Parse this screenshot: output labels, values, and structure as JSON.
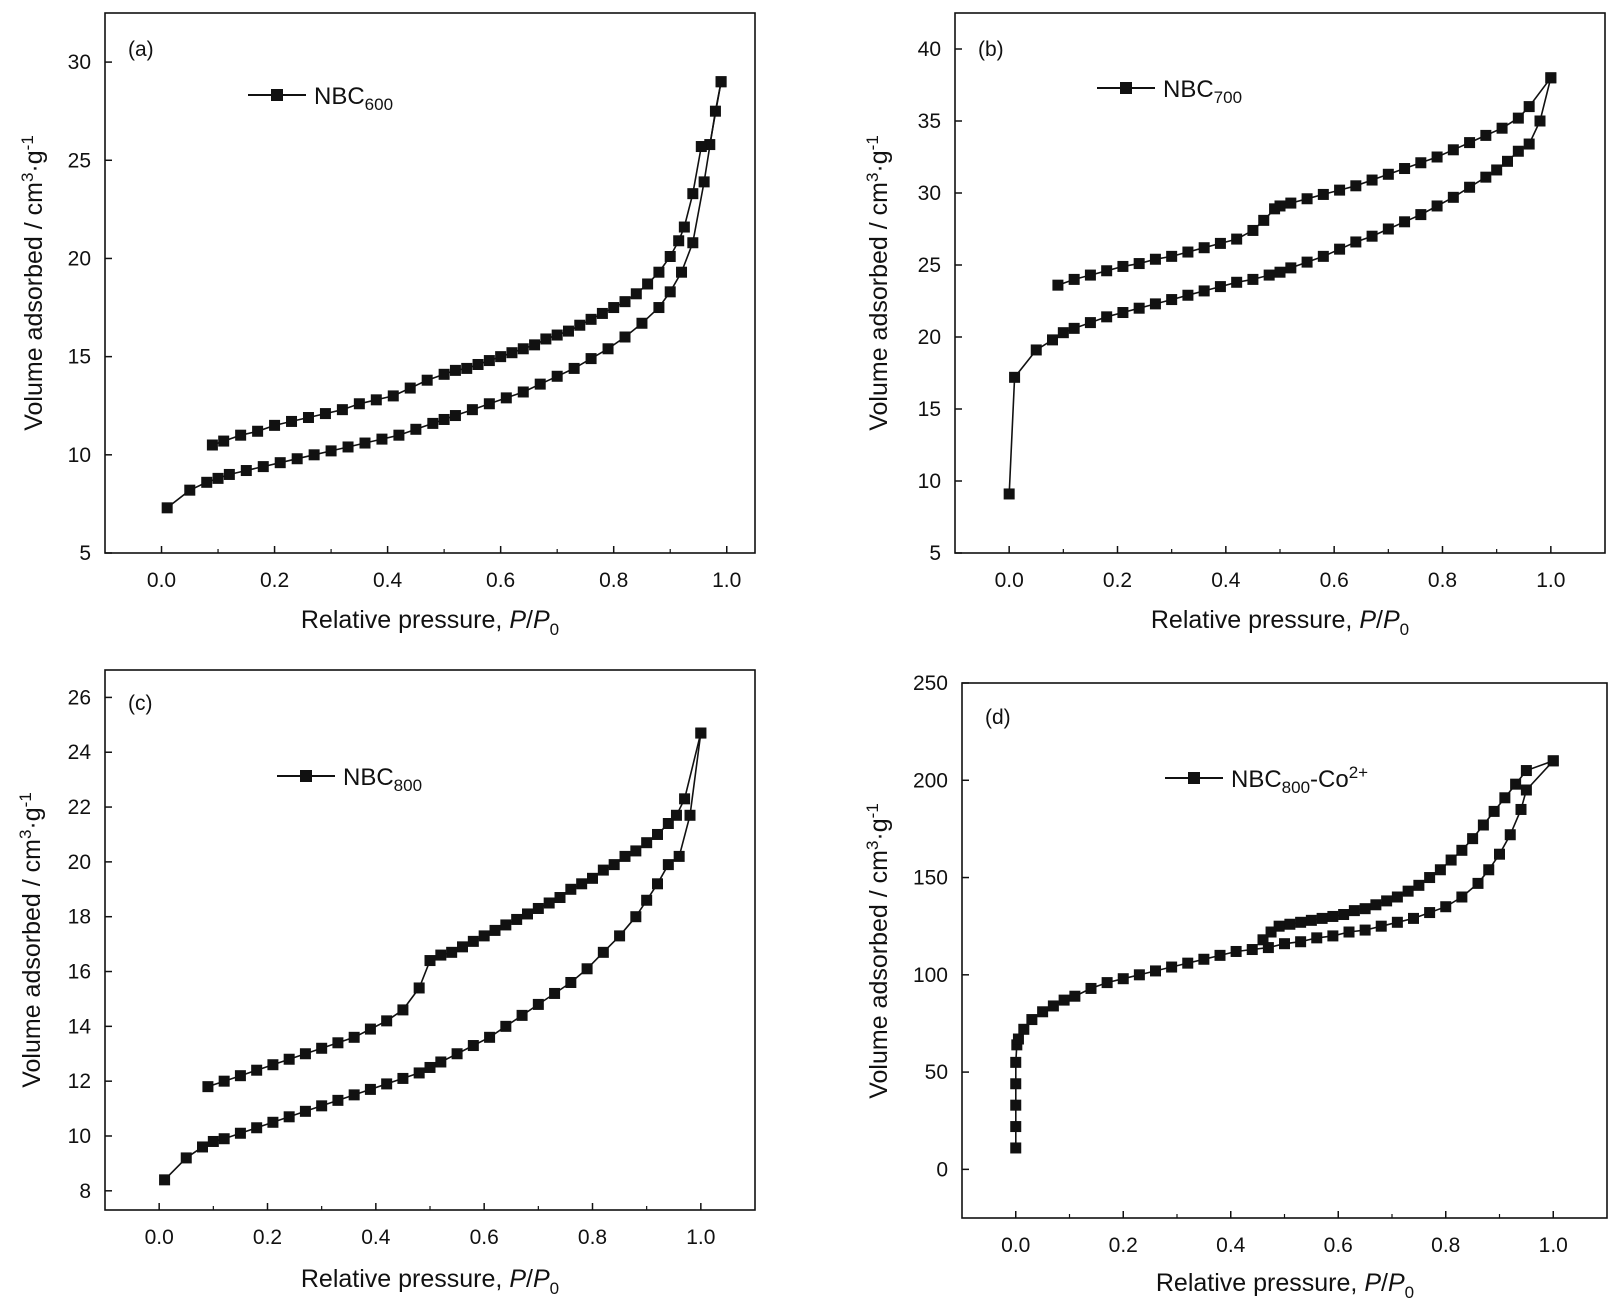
{
  "charts": [
    {
      "panel_label": "(a)",
      "legend": {
        "name": "NBC",
        "sub": "600",
        "sup": ""
      },
      "xlabel": {
        "prefix": "Relative pressure, ",
        "P": "P",
        "slash": "/",
        "P0": "P",
        "sub0": "0"
      },
      "ylabel": {
        "pre": "Volume adsorbed / cm",
        "sup3": "3",
        "mid": "·g",
        "supm1": "-1"
      },
      "xticks": [
        "0.0",
        "0.2",
        "0.4",
        "0.6",
        "0.8",
        "1.0"
      ],
      "yticks": [
        "5",
        "10",
        "15",
        "20",
        "25",
        "30"
      ]
    },
    {
      "panel_label": "(b)",
      "legend": {
        "name": "NBC",
        "sub": "700",
        "sup": ""
      },
      "xlabel": {
        "prefix": "Relative pressure, ",
        "P": "P",
        "slash": "/",
        "P0": "P",
        "sub0": "0"
      },
      "ylabel": {
        "pre": "Volume adsorbed / cm",
        "sup3": "3",
        "mid": "·g",
        "supm1": "-1"
      },
      "xticks": [
        "0.0",
        "0.2",
        "0.4",
        "0.6",
        "0.8",
        "1.0"
      ],
      "yticks": [
        "5",
        "10",
        "15",
        "20",
        "25",
        "30",
        "35",
        "40"
      ]
    },
    {
      "panel_label": "(c)",
      "legend": {
        "name": "NBC",
        "sub": "800",
        "sup": ""
      },
      "xlabel": {
        "prefix": "Relative pressure, ",
        "P": "P",
        "slash": "/",
        "P0": "P",
        "sub0": "0"
      },
      "ylabel": {
        "pre": "Volume adsorbed / cm",
        "sup3": "3",
        "mid": "·g",
        "supm1": "-1"
      },
      "xticks": [
        "0.0",
        "0.2",
        "0.4",
        "0.6",
        "0.8",
        "1.0"
      ],
      "yticks": [
        "8",
        "10",
        "12",
        "14",
        "16",
        "18",
        "20",
        "22",
        "24",
        "26"
      ]
    },
    {
      "panel_label": "(d)",
      "legend": {
        "name": "NBC",
        "sub": "800",
        "sup": "-Co",
        "sup2": "2+"
      },
      "xlabel": {
        "prefix": "Relative pressure, ",
        "P": "P",
        "slash": "/",
        "P0": "P",
        "sub0": "0"
      },
      "ylabel": {
        "pre": "Volume adsorbed / cm",
        "sup3": "3",
        "mid": "·g",
        "supm1": "-1"
      },
      "xticks": [
        "0.0",
        "0.2",
        "0.4",
        "0.6",
        "0.8",
        "1.0"
      ],
      "yticks": [
        "0",
        "50",
        "100",
        "150",
        "200",
        "250"
      ]
    }
  ],
  "chart_data": [
    {
      "type": "line",
      "marker": "square",
      "xlim": [
        -0.1,
        1.05
      ],
      "ylim": [
        5,
        32.5
      ],
      "series": [
        {
          "name": "NBC600",
          "adsorption": {
            "x": [
              0.01,
              0.05,
              0.08,
              0.1,
              0.12,
              0.15,
              0.18,
              0.21,
              0.24,
              0.27,
              0.3,
              0.33,
              0.36,
              0.39,
              0.42,
              0.45,
              0.48,
              0.5,
              0.52,
              0.55,
              0.58,
              0.61,
              0.64,
              0.67,
              0.7,
              0.73,
              0.76,
              0.79,
              0.82,
              0.85,
              0.88,
              0.9,
              0.92,
              0.94,
              0.96,
              0.98,
              0.99
            ],
            "y": [
              7.3,
              8.2,
              8.6,
              8.8,
              9.0,
              9.2,
              9.4,
              9.6,
              9.8,
              10.0,
              10.2,
              10.4,
              10.6,
              10.8,
              11.0,
              11.3,
              11.6,
              11.8,
              12.0,
              12.3,
              12.6,
              12.9,
              13.2,
              13.6,
              14.0,
              14.4,
              14.9,
              15.4,
              16.0,
              16.7,
              17.5,
              18.3,
              19.3,
              20.8,
              23.9,
              27.5,
              29.0
            ]
          },
          "desorption": {
            "x": [
              0.99,
              0.97,
              0.955,
              0.94,
              0.925,
              0.915,
              0.9,
              0.88,
              0.86,
              0.84,
              0.82,
              0.8,
              0.78,
              0.76,
              0.74,
              0.72,
              0.7,
              0.68,
              0.66,
              0.64,
              0.62,
              0.6,
              0.58,
              0.56,
              0.54,
              0.52,
              0.5,
              0.47,
              0.44,
              0.41,
              0.38,
              0.35,
              0.32,
              0.29,
              0.26,
              0.23,
              0.2,
              0.17,
              0.14,
              0.11,
              0.09
            ],
            "y": [
              29.0,
              25.8,
              25.7,
              23.3,
              21.6,
              20.9,
              20.1,
              19.3,
              18.7,
              18.2,
              17.8,
              17.5,
              17.2,
              16.9,
              16.6,
              16.3,
              16.1,
              15.9,
              15.6,
              15.4,
              15.2,
              15.0,
              14.8,
              14.6,
              14.4,
              14.3,
              14.1,
              13.8,
              13.4,
              13.0,
              12.8,
              12.6,
              12.3,
              12.1,
              11.9,
              11.7,
              11.5,
              11.2,
              11.0,
              10.7,
              10.5
            ]
          }
        }
      ]
    },
    {
      "type": "line",
      "marker": "square",
      "xlim": [
        -0.1,
        1.1
      ],
      "ylim": [
        5,
        42.5
      ],
      "series": [
        {
          "name": "NBC700",
          "adsorption": {
            "x": [
              0.0,
              0.01,
              0.05,
              0.08,
              0.1,
              0.12,
              0.15,
              0.18,
              0.21,
              0.24,
              0.27,
              0.3,
              0.33,
              0.36,
              0.39,
              0.42,
              0.45,
              0.48,
              0.5,
              0.52,
              0.55,
              0.58,
              0.61,
              0.64,
              0.67,
              0.7,
              0.73,
              0.76,
              0.79,
              0.82,
              0.85,
              0.88,
              0.9,
              0.92,
              0.94,
              0.96,
              0.98,
              1.0
            ],
            "y": [
              9.1,
              17.2,
              19.1,
              19.8,
              20.3,
              20.6,
              21.0,
              21.4,
              21.7,
              22.0,
              22.3,
              22.6,
              22.9,
              23.2,
              23.5,
              23.8,
              24.0,
              24.3,
              24.5,
              24.8,
              25.2,
              25.6,
              26.1,
              26.6,
              27.0,
              27.5,
              28.0,
              28.5,
              29.1,
              29.7,
              30.4,
              31.1,
              31.6,
              32.2,
              32.9,
              33.4,
              35.0,
              38.0
            ]
          },
          "desorption": {
            "x": [
              1.0,
              0.96,
              0.94,
              0.91,
              0.88,
              0.85,
              0.82,
              0.79,
              0.76,
              0.73,
              0.7,
              0.67,
              0.64,
              0.61,
              0.58,
              0.55,
              0.52,
              0.5,
              0.49,
              0.47,
              0.45,
              0.42,
              0.39,
              0.36,
              0.33,
              0.3,
              0.27,
              0.24,
              0.21,
              0.18,
              0.15,
              0.12,
              0.09
            ],
            "y": [
              38.0,
              36.0,
              35.2,
              34.5,
              34.0,
              33.5,
              33.0,
              32.5,
              32.1,
              31.7,
              31.3,
              30.9,
              30.5,
              30.2,
              29.9,
              29.6,
              29.3,
              29.1,
              28.9,
              28.1,
              27.4,
              26.8,
              26.5,
              26.2,
              25.9,
              25.6,
              25.4,
              25.1,
              24.9,
              24.6,
              24.3,
              24.0,
              23.6
            ]
          }
        }
      ]
    },
    {
      "type": "line",
      "marker": "square",
      "xlim": [
        -0.1,
        1.1
      ],
      "ylim": [
        7.3,
        27.0
      ],
      "series": [
        {
          "name": "NBC800",
          "adsorption": {
            "x": [
              0.01,
              0.05,
              0.08,
              0.1,
              0.12,
              0.15,
              0.18,
              0.21,
              0.24,
              0.27,
              0.3,
              0.33,
              0.36,
              0.39,
              0.42,
              0.45,
              0.48,
              0.5,
              0.52,
              0.55,
              0.58,
              0.61,
              0.64,
              0.67,
              0.7,
              0.73,
              0.76,
              0.79,
              0.82,
              0.85,
              0.88,
              0.9,
              0.92,
              0.94,
              0.96,
              0.98,
              1.0
            ],
            "y": [
              8.4,
              9.2,
              9.6,
              9.8,
              9.9,
              10.1,
              10.3,
              10.5,
              10.7,
              10.9,
              11.1,
              11.3,
              11.5,
              11.7,
              11.9,
              12.1,
              12.3,
              12.5,
              12.7,
              13.0,
              13.3,
              13.6,
              14.0,
              14.4,
              14.8,
              15.2,
              15.6,
              16.1,
              16.7,
              17.3,
              18.0,
              18.6,
              19.2,
              19.9,
              20.2,
              21.7,
              24.7
            ]
          },
          "desorption": {
            "x": [
              1.0,
              0.97,
              0.955,
              0.94,
              0.92,
              0.9,
              0.88,
              0.86,
              0.84,
              0.82,
              0.8,
              0.78,
              0.76,
              0.74,
              0.72,
              0.7,
              0.68,
              0.66,
              0.64,
              0.62,
              0.6,
              0.58,
              0.56,
              0.54,
              0.52,
              0.5,
              0.48,
              0.45,
              0.42,
              0.39,
              0.36,
              0.33,
              0.3,
              0.27,
              0.24,
              0.21,
              0.18,
              0.15,
              0.12,
              0.09
            ],
            "y": [
              24.7,
              22.3,
              21.7,
              21.4,
              21.0,
              20.7,
              20.4,
              20.2,
              19.9,
              19.7,
              19.4,
              19.2,
              19.0,
              18.7,
              18.5,
              18.3,
              18.1,
              17.9,
              17.7,
              17.5,
              17.3,
              17.1,
              16.9,
              16.7,
              16.6,
              16.4,
              15.4,
              14.6,
              14.2,
              13.9,
              13.6,
              13.4,
              13.2,
              13.0,
              12.8,
              12.6,
              12.4,
              12.2,
              12.0,
              11.8
            ]
          }
        }
      ]
    },
    {
      "type": "line",
      "marker": "square",
      "xlim": [
        -0.1,
        1.1
      ],
      "ylim": [
        -25,
        250
      ],
      "series": [
        {
          "name": "NBC800-Co2+",
          "adsorption": {
            "x": [
              0.0,
              0.0,
              0.0,
              0.0,
              0.0,
              0.002,
              0.005,
              0.015,
              0.03,
              0.05,
              0.07,
              0.09,
              0.11,
              0.14,
              0.17,
              0.2,
              0.23,
              0.26,
              0.29,
              0.32,
              0.35,
              0.38,
              0.41,
              0.44,
              0.47,
              0.5,
              0.53,
              0.56,
              0.59,
              0.62,
              0.65,
              0.68,
              0.71,
              0.74,
              0.77,
              0.8,
              0.83,
              0.86,
              0.88,
              0.9,
              0.92,
              0.94,
              0.95,
              1.0
            ],
            "y": [
              11,
              22,
              33,
              44,
              55,
              64,
              67,
              72,
              77,
              81,
              84,
              87,
              89,
              93,
              96,
              98,
              100,
              102,
              104,
              106,
              108,
              110,
              112,
              113,
              114,
              116,
              117,
              119,
              120,
              122,
              123,
              125,
              127,
              129,
              132,
              135,
              140,
              147,
              154,
              162,
              172,
              185,
              195,
              210
            ]
          },
          "desorption": {
            "x": [
              1.0,
              0.95,
              0.93,
              0.91,
              0.89,
              0.87,
              0.85,
              0.83,
              0.81,
              0.79,
              0.77,
              0.75,
              0.73,
              0.71,
              0.69,
              0.67,
              0.65,
              0.63,
              0.61,
              0.59,
              0.57,
              0.55,
              0.53,
              0.51,
              0.49,
              0.475,
              0.46
            ],
            "y": [
              210,
              205,
              198,
              191,
              184,
              177,
              170,
              164,
              159,
              154,
              150,
              146,
              143,
              140,
              138,
              136,
              134,
              133,
              131,
              130,
              129,
              128,
              127,
              126,
              125,
              122,
              118
            ]
          }
        }
      ]
    }
  ]
}
